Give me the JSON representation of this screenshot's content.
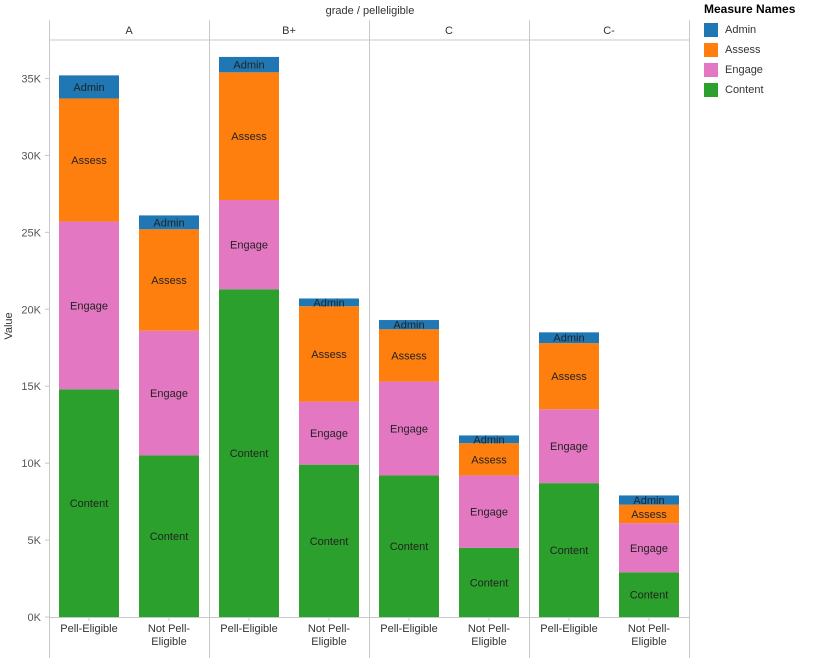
{
  "chart_data": {
    "type": "bar",
    "stacked": true,
    "title": "grade  /  pelleligible",
    "ylabel": "Value",
    "ylim": [
      0,
      37500
    ],
    "yticks": [
      0,
      5000,
      10000,
      15000,
      20000,
      25000,
      30000,
      35000
    ],
    "ytick_labels": [
      "0K",
      "5K",
      "10K",
      "15K",
      "20K",
      "25K",
      "30K",
      "35K"
    ],
    "facet_field": "grade",
    "facets": [
      "A",
      "B+",
      "C",
      "C-"
    ],
    "categories": [
      "Pell-Eligible",
      "Not Pell-Eligible"
    ],
    "category_lines": [
      [
        "Pell-Eligible"
      ],
      [
        "Not Pell-",
        "Eligible"
      ]
    ],
    "legend_title": "Measure Names",
    "series": [
      {
        "name": "Admin",
        "color": "#1f77b4",
        "values": {
          "A": [
            1500,
            900
          ],
          "B+": [
            1000,
            500
          ],
          "C": [
            600,
            500
          ],
          "C-": [
            700,
            600
          ]
        }
      },
      {
        "name": "Assess",
        "color": "#ff7f0e",
        "values": {
          "A": [
            8000,
            6600
          ],
          "B+": [
            8300,
            6200
          ],
          "C": [
            3400,
            2100
          ],
          "C-": [
            4300,
            1200
          ]
        }
      },
      {
        "name": "Engage",
        "color": "#e377c2",
        "values": {
          "A": [
            10900,
            8100
          ],
          "B+": [
            5800,
            4100
          ],
          "C": [
            6100,
            4700
          ],
          "C-": [
            4800,
            3200
          ]
        }
      },
      {
        "name": "Content",
        "color": "#2ca02c",
        "values": {
          "A": [
            14800,
            10500
          ],
          "B+": [
            21300,
            9900
          ],
          "C": [
            9200,
            4500
          ],
          "C-": [
            8700,
            2900
          ]
        }
      }
    ]
  }
}
